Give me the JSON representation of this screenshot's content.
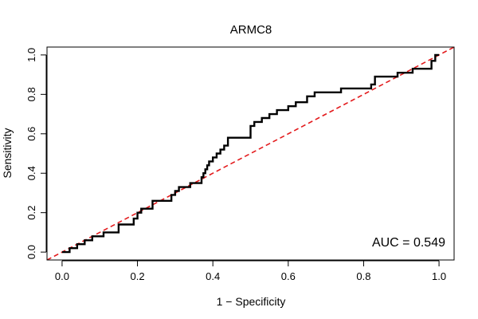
{
  "chart_data": {
    "type": "line",
    "title": "ARMC8",
    "xlabel": "1 − Specificity",
    "ylabel": "Sensitivity",
    "xlim": [
      -0.04,
      1.04
    ],
    "ylim": [
      -0.04,
      1.04
    ],
    "x_ticks": [
      0.0,
      0.2,
      0.4,
      0.6,
      0.8,
      1.0
    ],
    "y_ticks": [
      0.0,
      0.2,
      0.4,
      0.6,
      0.8,
      1.0
    ],
    "x_tick_labels": [
      "0.0",
      "0.2",
      "0.4",
      "0.6",
      "0.8",
      "1.0"
    ],
    "y_tick_labels": [
      "0.0",
      "0.2",
      "0.4",
      "0.6",
      "0.8",
      "1.0"
    ],
    "grid": false,
    "annotation": "AUC = 0.549",
    "annotation_position": "bottom-right",
    "series": [
      {
        "kind": "roc-curve",
        "color": "#000000",
        "x": [
          0.0,
          0.02,
          0.02,
          0.04,
          0.04,
          0.06,
          0.06,
          0.08,
          0.08,
          0.11,
          0.11,
          0.15,
          0.15,
          0.19,
          0.19,
          0.2,
          0.2,
          0.21,
          0.21,
          0.24,
          0.24,
          0.26,
          0.29,
          0.29,
          0.3,
          0.3,
          0.31,
          0.31,
          0.34,
          0.34,
          0.37,
          0.37,
          0.375,
          0.375,
          0.38,
          0.38,
          0.385,
          0.385,
          0.39,
          0.39,
          0.4,
          0.4,
          0.41,
          0.41,
          0.42,
          0.42,
          0.43,
          0.43,
          0.44,
          0.44,
          0.45,
          0.5,
          0.5,
          0.51,
          0.51,
          0.53,
          0.53,
          0.55,
          0.55,
          0.57,
          0.57,
          0.6,
          0.6,
          0.62,
          0.62,
          0.65,
          0.65,
          0.67,
          0.67,
          0.74,
          0.74,
          0.82,
          0.82,
          0.83,
          0.83,
          0.89,
          0.89,
          0.93,
          0.93,
          0.98,
          0.98,
          0.99,
          0.99,
          1.0
        ],
        "y": [
          0.0,
          0.0,
          0.02,
          0.02,
          0.04,
          0.04,
          0.06,
          0.06,
          0.08,
          0.08,
          0.1,
          0.1,
          0.14,
          0.14,
          0.17,
          0.17,
          0.2,
          0.2,
          0.22,
          0.22,
          0.26,
          0.26,
          0.26,
          0.29,
          0.29,
          0.31,
          0.31,
          0.33,
          0.33,
          0.35,
          0.35,
          0.38,
          0.38,
          0.4,
          0.4,
          0.42,
          0.42,
          0.44,
          0.44,
          0.46,
          0.46,
          0.48,
          0.48,
          0.5,
          0.5,
          0.52,
          0.52,
          0.54,
          0.54,
          0.58,
          0.58,
          0.58,
          0.64,
          0.64,
          0.66,
          0.66,
          0.68,
          0.68,
          0.7,
          0.7,
          0.72,
          0.72,
          0.74,
          0.74,
          0.76,
          0.76,
          0.79,
          0.79,
          0.81,
          0.81,
          0.83,
          0.83,
          0.85,
          0.85,
          0.89,
          0.89,
          0.91,
          0.91,
          0.93,
          0.93,
          0.97,
          0.97,
          1.0,
          1.0
        ]
      },
      {
        "kind": "chance-diagonal",
        "color": "#e31a1c",
        "dash": "dashed",
        "x": [
          0.0,
          1.0
        ],
        "y": [
          0.0,
          1.0
        ]
      }
    ]
  }
}
